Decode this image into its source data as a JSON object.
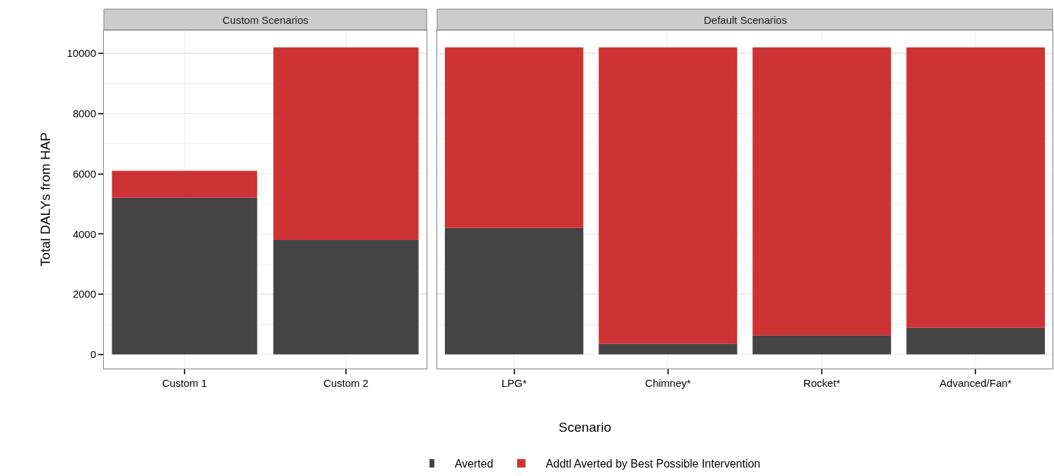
{
  "chart_data": [
    {
      "type": "bar",
      "title": "Custom Scenarios",
      "ylabel": "Total DALYs from HAP",
      "categories": [
        "Custom 1",
        "Custom 2"
      ],
      "stacked": true,
      "series": [
        {
          "color": "#444444",
          "values": [
            5200,
            3800
          ]
        },
        {
          "color": "#cd3333",
          "values": [
            900,
            6400
          ]
        }
      ],
      "ylim": [
        -470,
        10770
      ],
      "yticks": [
        0,
        2000,
        4000,
        6000,
        8000,
        10000
      ],
      "grid": true
    },
    {
      "type": "bar",
      "title": "Default Scenarios",
      "xlabel": "Scenario",
      "categories": [
        "LPG*",
        "Chimney*",
        "Rocket*",
        "Advanced/Fan*"
      ],
      "stacked": true,
      "series": [
        {
          "name": "Averted",
          "color": "#444444",
          "values": [
            4200,
            350,
            630,
            890
          ]
        },
        {
          "name": "Addtl Averted by Best Possible Intervention",
          "color": "#cd3333",
          "values": [
            6000,
            9850,
            9570,
            9310
          ]
        }
      ],
      "ylim": [
        -470,
        10770
      ],
      "yticks": [
        0,
        2000,
        4000,
        6000,
        8000,
        10000
      ],
      "grid": true,
      "tick_labels": "x",
      "legend": "bottom"
    }
  ]
}
